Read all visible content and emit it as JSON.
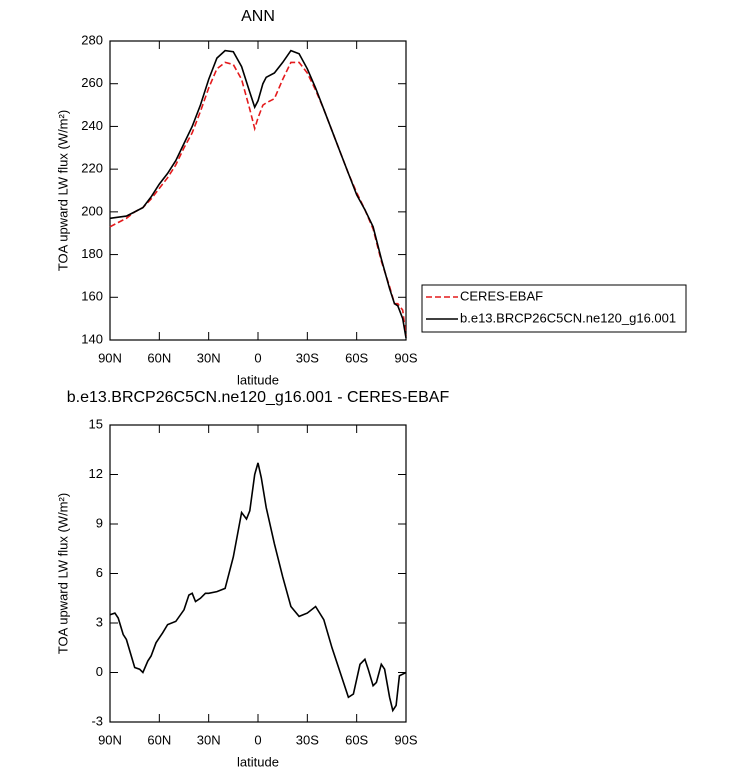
{
  "chart_data": [
    {
      "type": "line",
      "title": "ANN",
      "xlabel": "latitude",
      "ylabel": "TOA upward LW flux (W/m²)",
      "x": [
        90,
        85,
        80,
        75,
        70,
        65,
        60,
        55,
        50,
        45,
        40,
        35,
        30,
        25,
        20,
        15,
        10,
        5,
        2,
        0,
        -3,
        -5,
        -10,
        -15,
        -20,
        -25,
        -30,
        -35,
        -40,
        -45,
        -50,
        -55,
        -60,
        -65,
        -70,
        -75,
        -80,
        -83,
        -85,
        -88,
        -90
      ],
      "series": [
        {
          "name": "CERES-EBAF",
          "color": "#e41a1c",
          "line_style": "dashed",
          "values": [
            193,
            195,
            197,
            200,
            202,
            206,
            211,
            216,
            222,
            230,
            237,
            247,
            258,
            267,
            270,
            269,
            262,
            248,
            239,
            244,
            250,
            251,
            253,
            262,
            270,
            270,
            265,
            257,
            248,
            238,
            228,
            218,
            209,
            201,
            192,
            177,
            165,
            157,
            157,
            154,
            142
          ]
        },
        {
          "name": "b.e13.BRCP26C5CN.ne120_g16.001",
          "color": "#000000",
          "line_style": "solid",
          "values": [
            197,
            197.5,
            198,
            200,
            202,
            207,
            213,
            218,
            224,
            232,
            240,
            250,
            262,
            272,
            275.5,
            275,
            268,
            256,
            249,
            252,
            260,
            263,
            265,
            270,
            275.5,
            274,
            267,
            258,
            248,
            238,
            228,
            218,
            208,
            201,
            193,
            178,
            164,
            157,
            156,
            150,
            141
          ]
        }
      ],
      "xlim": [
        90,
        -90
      ],
      "xticks": [
        {
          "value": 90,
          "label": "90N"
        },
        {
          "value": 60,
          "label": "60N"
        },
        {
          "value": 30,
          "label": "30N"
        },
        0,
        {
          "value": -30,
          "label": "30S"
        },
        {
          "value": -60,
          "label": "60S"
        },
        {
          "value": -90,
          "label": "90S"
        }
      ],
      "ylim": [
        140,
        280
      ],
      "yticks": [
        140,
        160,
        180,
        200,
        220,
        240,
        260,
        280
      ],
      "legend": "right"
    },
    {
      "type": "line",
      "title": "b.e13.BRCP26C5CN.ne120_g16.001 - CERES-EBAF",
      "xlabel": "latitude",
      "ylabel": "TOA upward LW flux (W/m²)",
      "x": [
        90,
        87,
        85,
        82,
        80,
        75,
        72,
        70,
        67,
        65,
        62,
        58,
        55,
        50,
        45,
        42,
        40,
        38,
        35,
        32,
        30,
        25,
        20,
        15,
        10,
        7,
        5,
        2,
        0,
        -2,
        -5,
        -10,
        -15,
        -20,
        -25,
        -30,
        -35,
        -40,
        -45,
        -50,
        -55,
        -58,
        -62,
        -65,
        -67,
        -70,
        -72,
        -75,
        -77,
        -80,
        -82,
        -84,
        -86,
        -90
      ],
      "series": [
        {
          "color": "#000000",
          "line_style": "solid",
          "values": [
            3.5,
            3.6,
            3.3,
            2.3,
            2.0,
            0.3,
            0.2,
            0.0,
            0.7,
            1.0,
            1.8,
            2.4,
            2.9,
            3.1,
            3.8,
            4.7,
            4.8,
            4.3,
            4.5,
            4.8,
            4.8,
            4.9,
            5.1,
            7.0,
            9.7,
            9.3,
            9.8,
            12.0,
            12.7,
            11.8,
            10.0,
            7.8,
            5.8,
            4.0,
            3.4,
            3.6,
            4.0,
            3.2,
            1.5,
            0.0,
            -1.5,
            -1.3,
            0.5,
            0.8,
            0.2,
            -0.8,
            -0.6,
            0.5,
            0.2,
            -1.5,
            -2.3,
            -2.0,
            -0.2,
            0.0
          ]
        }
      ],
      "xlim": [
        90,
        -90
      ],
      "xticks": [
        {
          "value": 90,
          "label": "90N"
        },
        {
          "value": 60,
          "label": "60N"
        },
        {
          "value": 30,
          "label": "30N"
        },
        0,
        {
          "value": -30,
          "label": "30S"
        },
        {
          "value": -60,
          "label": "60S"
        },
        {
          "value": -90,
          "label": "90S"
        }
      ],
      "ylim": [
        -3,
        15
      ],
      "yticks": [
        -3,
        0,
        3,
        6,
        9,
        12,
        15
      ]
    }
  ]
}
